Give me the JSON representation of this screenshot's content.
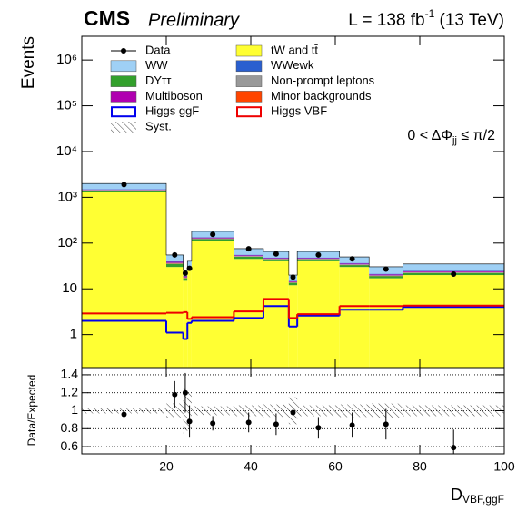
{
  "chart_data": [
    {
      "type": "histogram",
      "experiment": "CMS",
      "status": "Preliminary",
      "lumi": {
        "text": "L = 138 fb",
        "sup": "-1",
        "rest": " (13 TeV)"
      },
      "y_label": "Events",
      "annotation": {
        "text": "0 < ΔΦ",
        "sub": "jj",
        "rest": " ≤ π/2"
      },
      "log_y": true,
      "xlim": [
        0,
        100
      ],
      "xticks": [
        20,
        40,
        60,
        80,
        100
      ],
      "ylim": [
        0.19,
        3300000
      ],
      "yticks": [
        1,
        10,
        {
          "value": 100,
          "label": "10²"
        },
        {
          "value": 1000,
          "label": "10³"
        },
        {
          "value": 10000,
          "label": "10⁴"
        },
        {
          "value": 100000,
          "label": "10⁵"
        },
        {
          "value": 1000000,
          "label": "10⁶"
        }
      ],
      "bins": [
        0,
        20,
        24,
        25,
        26,
        36,
        43,
        49,
        51,
        61,
        68,
        76,
        100
      ],
      "series": [
        {
          "name": "tW and tt̄",
          "color": "#ffff33",
          "values": [
            1300,
            30,
            15,
            25,
            110,
            45,
            40,
            12,
            40,
            30,
            17,
            20
          ]
        },
        {
          "name": "DYττ",
          "color": "#33a02c",
          "values": [
            100,
            5,
            2,
            3,
            12,
            5,
            4,
            1.5,
            4,
            3,
            2,
            2
          ]
        },
        {
          "name": "Minor backgrounds",
          "color": "#ff4500",
          "values": [
            10,
            0.5,
            0.3,
            0.3,
            1,
            0.5,
            0.4,
            0.1,
            0.4,
            0.3,
            0.2,
            0.2
          ]
        },
        {
          "name": "Non-prompt leptons",
          "color": "#999999",
          "values": [
            40,
            1.5,
            0.5,
            1,
            4,
            1.5,
            1.2,
            0.5,
            1.2,
            1,
            0.5,
            1
          ]
        },
        {
          "name": "Multiboson",
          "color": "#b000b0",
          "values": [
            30,
            2,
            1,
            1,
            5,
            2,
            1.5,
            0.5,
            1.5,
            1.5,
            1,
            1
          ]
        },
        {
          "name": "WWewk",
          "color": "#2a5fcf",
          "values": [
            20,
            1,
            0.5,
            0.7,
            3,
            1.5,
            1.2,
            0.4,
            1.2,
            1,
            0.6,
            0.8
          ]
        },
        {
          "name": "WW",
          "color": "#9fd0f5",
          "values": [
            500,
            15,
            6,
            9,
            45,
            20,
            17,
            5,
            17,
            13,
            9,
            10
          ]
        }
      ],
      "lines": [
        {
          "name": "Higgs ggF",
          "color": "#0000ee",
          "values": [
            2.0,
            1.1,
            0.8,
            1.8,
            2.0,
            2.3,
            4.2,
            1.5,
            2.6,
            3.5,
            3.5,
            4.0
          ]
        },
        {
          "name": "Higgs VBF",
          "color": "#ee0000",
          "values": [
            2.9,
            3.0,
            3.1,
            2.2,
            2.4,
            3.2,
            6.0,
            2.3,
            2.8,
            4.2,
            4.2,
            4.3
          ]
        }
      ],
      "data": {
        "name": "Data",
        "x": [
          10,
          22,
          24.5,
          25.5,
          31,
          39.5,
          46,
          50,
          56,
          64,
          72,
          88
        ],
        "values": [
          1900,
          55,
          22,
          28,
          155,
          75,
          58,
          18,
          55,
          45,
          27,
          21
        ]
      },
      "syst_name": "Syst."
    },
    {
      "type": "scatter",
      "y_label": "Data/Expected",
      "x_label": {
        "text": "D",
        "sub": "VBF,ggF"
      },
      "xlim": [
        0,
        100
      ],
      "xticks": [
        20,
        40,
        60,
        80,
        100
      ],
      "ylim": [
        0.52,
        1.48
      ],
      "yticks": [
        0.6,
        0.8,
        1,
        1.2,
        1.4
      ],
      "grid": true,
      "x": [
        10,
        22,
        24.5,
        25.5,
        31,
        39.5,
        46,
        50,
        56,
        64,
        72,
        88
      ],
      "values": [
        0.96,
        1.18,
        1.2,
        0.88,
        0.86,
        0.87,
        0.85,
        0.98,
        0.81,
        0.84,
        0.85,
        0.59
      ],
      "errors": [
        0.03,
        0.15,
        0.22,
        0.18,
        0.08,
        0.11,
        0.12,
        0.25,
        0.12,
        0.14,
        0.17,
        0.2
      ],
      "band": [
        0.03,
        0.08,
        0.25,
        0.2,
        0.05,
        0.06,
        0.07,
        0.15,
        0.06,
        0.07,
        0.08,
        0.06
      ]
    }
  ]
}
